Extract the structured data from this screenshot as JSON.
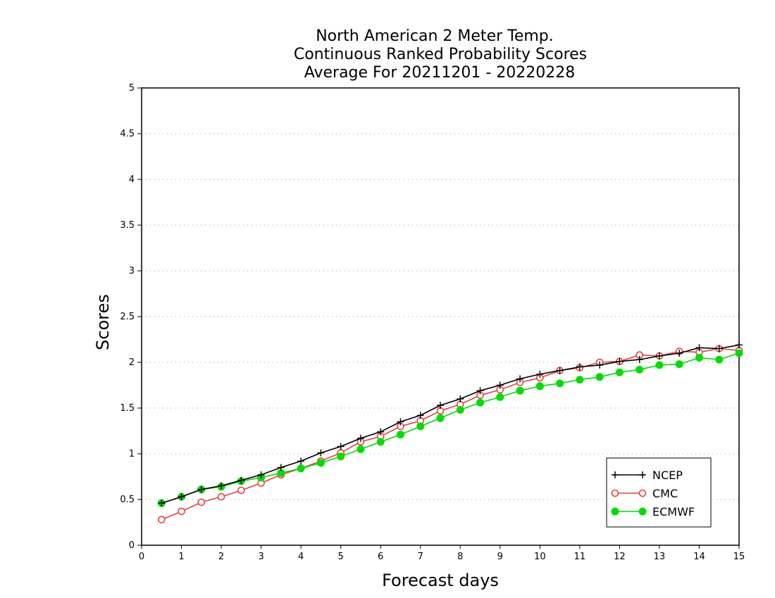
{
  "chart_data": {
    "type": "line",
    "title": [
      "North American 2 Meter Temp.",
      "Continuous Ranked Probability Scores",
      "Average For 20211201 - 20220228"
    ],
    "xlabel": "Forecast days",
    "ylabel": "Scores",
    "xlim": [
      0,
      15
    ],
    "ylim": [
      0,
      5
    ],
    "xticks": [
      "0",
      "1",
      "2",
      "3",
      "4",
      "5",
      "6",
      "7",
      "8",
      "9",
      "10",
      "11",
      "12",
      "13",
      "14",
      "15"
    ],
    "yticks": [
      "0",
      "0.5",
      "1",
      "1.5",
      "2",
      "2.5",
      "3",
      "3.5",
      "4",
      "4.5",
      "5"
    ],
    "grid": true,
    "legend_position": "bottom-right",
    "x": [
      0.5,
      1,
      1.5,
      2,
      2.5,
      3,
      3.5,
      4,
      4.5,
      5,
      5.5,
      6,
      6.5,
      7,
      7.5,
      8,
      8.5,
      9,
      9.5,
      10,
      10.5,
      11,
      11.5,
      12,
      12.5,
      13,
      13.5,
      14,
      14.5,
      15
    ],
    "series": [
      {
        "name": "NCEP",
        "color": "#000000",
        "marker": "plus",
        "values": [
          0.46,
          0.53,
          0.61,
          0.65,
          0.71,
          0.77,
          0.85,
          0.92,
          1.01,
          1.08,
          1.17,
          1.24,
          1.35,
          1.42,
          1.53,
          1.6,
          1.69,
          1.75,
          1.82,
          1.87,
          1.91,
          1.95,
          1.97,
          2.01,
          2.03,
          2.07,
          2.1,
          2.16,
          2.15,
          2.19
        ]
      },
      {
        "name": "CMC",
        "color": "#e8403f",
        "marker": "open-circle",
        "values": [
          0.28,
          0.37,
          0.47,
          0.53,
          0.6,
          0.68,
          0.77,
          0.84,
          0.92,
          1.01,
          1.13,
          1.19,
          1.3,
          1.36,
          1.47,
          1.54,
          1.64,
          1.7,
          1.78,
          1.83,
          1.91,
          1.94,
          2.0,
          2.01,
          2.08,
          2.07,
          2.12,
          2.11,
          2.15,
          2.13
        ]
      },
      {
        "name": "ECMWF",
        "color": "#00dd00",
        "marker": "filled-circle",
        "values": [
          0.46,
          0.53,
          0.61,
          0.64,
          0.7,
          0.74,
          0.79,
          0.84,
          0.9,
          0.97,
          1.05,
          1.13,
          1.21,
          1.3,
          1.39,
          1.48,
          1.56,
          1.62,
          1.69,
          1.74,
          1.77,
          1.81,
          1.84,
          1.89,
          1.92,
          1.97,
          1.98,
          2.05,
          2.03,
          2.1
        ]
      }
    ]
  }
}
